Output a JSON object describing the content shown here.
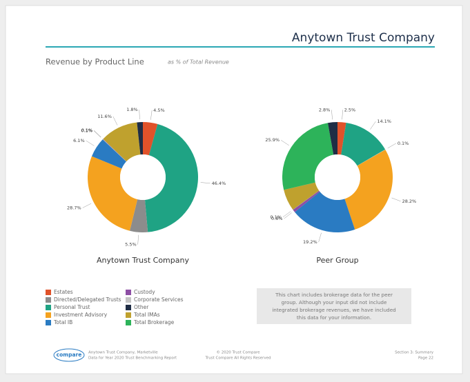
{
  "header": {
    "title": "Anytown Trust Company",
    "subtitle": "Revenue by Product Line",
    "subtitle_note": "as % of Total Revenue"
  },
  "legend": {
    "items": [
      "Estates",
      "Custody",
      "Directed/Delegated Trusts",
      "Corporate Services",
      "Personal Trust",
      "Other",
      "Investment Advisory",
      "Total IMAs",
      "Total IB",
      "Total Brokerage"
    ],
    "colors": [
      "#e0522a",
      "#8e4fa5",
      "#8c8c8c",
      "#c4c4c4",
      "#1fa384",
      "#1f2d45",
      "#f4a21f",
      "#bfa12e",
      "#2a7bc2",
      "#2db35a"
    ]
  },
  "chart_data": [
    {
      "type": "pie",
      "title": "Anytown Trust Company",
      "categories": [
        "Estates",
        "Personal Trust",
        "Directed/Delegated Trusts",
        "Investment Advisory",
        "Total IB",
        "Corporate Services",
        "Custody",
        "Total IMAs",
        "Other"
      ],
      "values": [
        4.5,
        46.4,
        5.5,
        28.7,
        6.1,
        0.1,
        0.1,
        11.6,
        1.8
      ],
      "value_labels": [
        "4.5%",
        "46.4%",
        "5.5%",
        "28.7%",
        "6.1%",
        "0.1%",
        "0.1%",
        "11.6%",
        "1.8%"
      ]
    },
    {
      "type": "pie",
      "title": "Peer Group",
      "categories": [
        "Estates",
        "Personal Trust",
        "Corporate Services",
        "Investment Advisory",
        "Total IB",
        "Custody",
        "Directed/Delegated Trusts",
        "Total IMAs",
        "Total Brokerage",
        "Other"
      ],
      "values": [
        2.5,
        14.1,
        0.1,
        28.2,
        19.2,
        0.8,
        0.1,
        6.3,
        25.9,
        2.8
      ],
      "value_labels": [
        "2.5%",
        "14.1%",
        "0.1%",
        "28.2%",
        "19.2%",
        "0.8%",
        "0.1%",
        null,
        "25.9%",
        "2.8%"
      ]
    }
  ],
  "note": "This chart includes brokerage data for the peer group. Although your input did not include integrated brokerage revenues, we have included this data for your information.",
  "footer": {
    "logo": "compare",
    "left": [
      "Anytown Trust Company, Marketville",
      "Data for Year 2020 Trust Benchmarking Report"
    ],
    "center": [
      "© 2020 Trust Compare",
      "Trust Compare All Rights Reserved"
    ],
    "right": [
      "Section 3: Summary",
      "Page 22"
    ]
  }
}
